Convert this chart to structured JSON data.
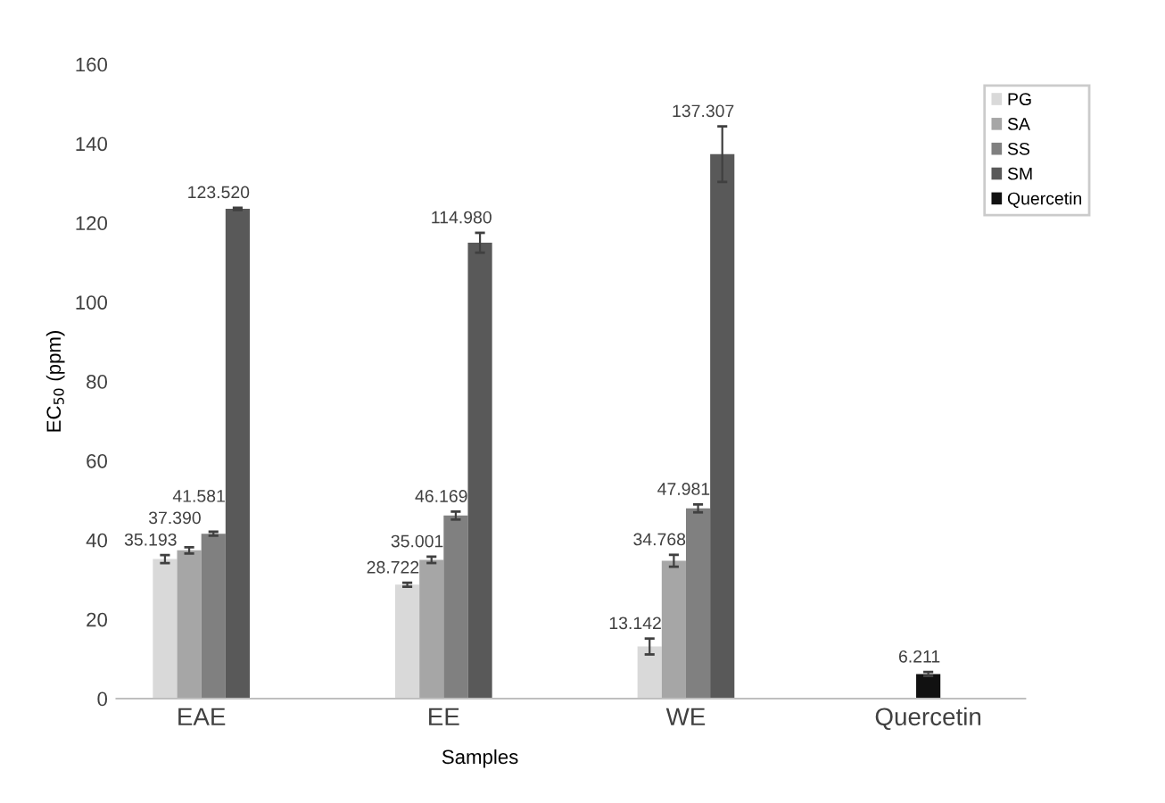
{
  "chart_data": {
    "type": "bar",
    "xlabel": "Samples",
    "ylabel": "EC$_{50}$ (ppm)",
    "categories": [
      "EAE",
      "EE",
      "WE",
      "Quercetin"
    ],
    "ylim": [
      0,
      160
    ],
    "yticks": [
      0,
      20,
      40,
      60,
      80,
      100,
      120,
      140,
      160
    ],
    "grid": false,
    "legend": "top right",
    "series": [
      {
        "name": "PG",
        "color": "#d9d9d9",
        "values": [
          35.193,
          28.722,
          13.142,
          null
        ],
        "errors": [
          1,
          0.5,
          2,
          null
        ],
        "value_labels": [
          "35.193",
          "28.722",
          "13.142",
          null
        ]
      },
      {
        "name": "SA",
        "color": "#a6a6a6",
        "values": [
          37.39,
          35.001,
          34.768,
          null
        ],
        "errors": [
          0.8,
          0.8,
          1.5,
          null
        ],
        "value_labels": [
          "37.390",
          "35.001",
          "34.768",
          null
        ]
      },
      {
        "name": "SS",
        "color": "#808080",
        "values": [
          41.581,
          46.169,
          47.981,
          null
        ],
        "errors": [
          0.5,
          1,
          1,
          null
        ],
        "value_labels": [
          "41.581",
          "46.169",
          "47.981",
          null
        ]
      },
      {
        "name": "SM",
        "color": "#595959",
        "values": [
          123.52,
          114.98,
          137.307,
          null
        ],
        "errors": [
          0.3,
          2.5,
          7,
          null
        ],
        "value_labels": [
          "123.520",
          "114.980",
          "137.307",
          null
        ]
      },
      {
        "name": "Quercetin",
        "color": "#111111",
        "values": [
          null,
          null,
          null,
          6.211
        ],
        "errors": [
          null,
          null,
          null,
          0.5
        ],
        "value_labels": [
          null,
          null,
          null,
          "6.211"
        ]
      }
    ]
  }
}
